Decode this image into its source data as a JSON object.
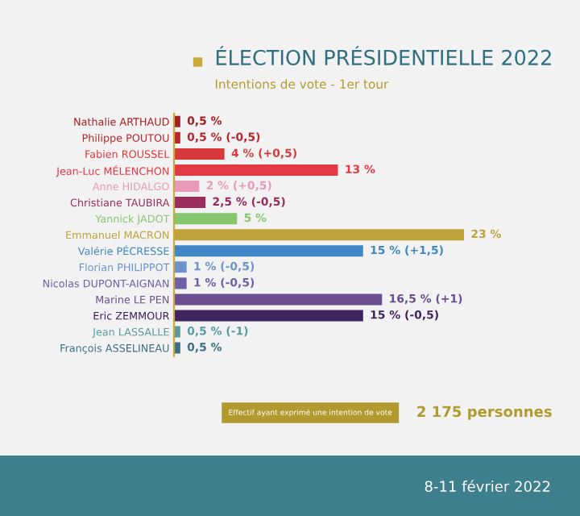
{
  "chart_data": {
    "type": "bar",
    "orientation": "horizontal",
    "title": "ÉLECTION PRÉSIDENTIELLE 2022",
    "subtitle": "Intentions de vote - 1er tour",
    "categories": [
      "Nathalie ARTHAUD",
      "Philippe POUTOU",
      "Fabien ROUSSEL",
      "Jean-Luc MÉLENCHON",
      "Anne HIDALGO",
      "Christiane TAUBIRA",
      "Yannick JADOT",
      "Emmanuel MACRON",
      "Valérie PÉCRESSE",
      "Florian PHILIPPOT",
      "Nicolas DUPONT-AIGNAN",
      "Marine LE PEN",
      "Eric ZEMMOUR",
      "Jean LASSALLE",
      "François ASSELINEAU"
    ],
    "values": [
      0.5,
      0.5,
      4,
      13,
      2,
      2.5,
      5,
      23,
      15,
      1,
      1,
      16.5,
      15,
      0.5,
      0.5
    ],
    "value_labels": [
      "0,5 %",
      "0,5 % (-0,5)",
      "4 % (+0,5)",
      "13 %",
      "2 % (+0,5)",
      "2,5 % (-0,5)",
      "5 %",
      "23 %",
      "15 % (+1,5)",
      "1 % (-0,5)",
      "1 % (-0,5)",
      "16,5 % (+1)",
      "15 % (-0,5)",
      "0,5 % (-1)",
      "0,5 %"
    ],
    "colors": [
      "#a51e22",
      "#b8262b",
      "#d83a3a",
      "#e63946",
      "#e89ab8",
      "#9b2d5e",
      "#86c66e",
      "#bfa23a",
      "#3f88c5",
      "#6b93cc",
      "#6f5fa6",
      "#6b4e8f",
      "#3e2460",
      "#5a9aa0",
      "#3d6f86"
    ],
    "annotations": [
      "Effectif ayant exprimé une intention de vote",
      "2 175 personnes",
      "8-11 février 2022"
    ],
    "grid": false,
    "legend": false
  }
}
